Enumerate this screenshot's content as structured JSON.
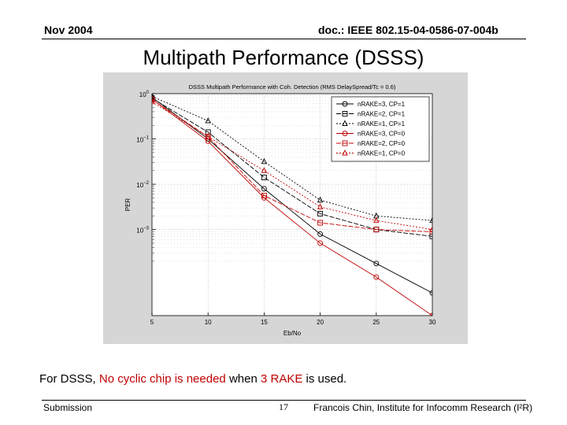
{
  "header": {
    "date": "Nov 2004",
    "doc_id": "doc.: IEEE 802.15-04-0586-07-004b"
  },
  "slide": {
    "title": "Multipath Performance (DSSS)"
  },
  "caption": {
    "part1": "For DSSS, ",
    "part2": "No cyclic chip is needed",
    "part3": " when ",
    "part4": "3 RAKE",
    "part5": " is used."
  },
  "footer": {
    "left": "Submission",
    "page": "17",
    "right": "Francois Chin, Institute for Infocomm Research (I²R)"
  },
  "colors": {
    "red": "#c00000",
    "black": "#000000",
    "plot_bg": "#ffffff",
    "frame_bg": "#d6d6d6"
  },
  "chart_data": {
    "type": "line",
    "title": "DSSS Multipath Performance with Coh. Detection (RMS DelaySpread/Tc = 0.6)",
    "xlabel": "Eb/No",
    "ylabel": "PER",
    "xlim": [
      5,
      30
    ],
    "ylim_exp": [
      -4.9,
      0
    ],
    "yscale": "log",
    "xticks": [
      5,
      10,
      15,
      20,
      25,
      30
    ],
    "xtick_labels": [
      "5",
      "10",
      "15",
      "20",
      "25",
      "30"
    ],
    "yticks": [
      0,
      -1,
      -2,
      -3
    ],
    "ytick_base": "10",
    "ytick_exponents": [
      "0",
      "−1",
      "−2",
      "−3"
    ],
    "grid": true,
    "legend_position": "top-right",
    "x": [
      5,
      10,
      15,
      20,
      25,
      30
    ],
    "series": [
      {
        "name": "nRAKE=3, CP=1",
        "color": "#000000",
        "marker": "circle",
        "log10_values": [
          -0.08,
          -1.0,
          -2.1,
          -3.1,
          -3.75,
          -4.4
        ]
      },
      {
        "name": "nRAKE=2, CP=1",
        "color": "#000000",
        "marker": "square",
        "log10_values": [
          -0.1,
          -0.85,
          -1.85,
          -2.65,
          -3.0,
          -3.15
        ]
      },
      {
        "name": "nRAKE=1, CP=1",
        "color": "#000000",
        "marker": "triangle",
        "log10_values": [
          -0.06,
          -0.6,
          -1.5,
          -2.35,
          -2.7,
          -2.8
        ]
      },
      {
        "name": "nRAKE=3, CP=0",
        "color": "#c00000",
        "marker": "circle",
        "log10_values": [
          -0.12,
          -1.05,
          -2.3,
          -3.3,
          -4.05,
          -4.9
        ]
      },
      {
        "name": "nRAKE=2, CP=0",
        "color": "#c00000",
        "marker": "square",
        "log10_values": [
          -0.13,
          -0.95,
          -2.25,
          -2.85,
          -3.0,
          -3.05
        ]
      },
      {
        "name": "nRAKE=1, CP=0",
        "color": "#c00000",
        "marker": "triangle",
        "log10_values": [
          -0.18,
          -0.95,
          -1.7,
          -2.5,
          -2.8,
          -3.0
        ]
      }
    ]
  }
}
